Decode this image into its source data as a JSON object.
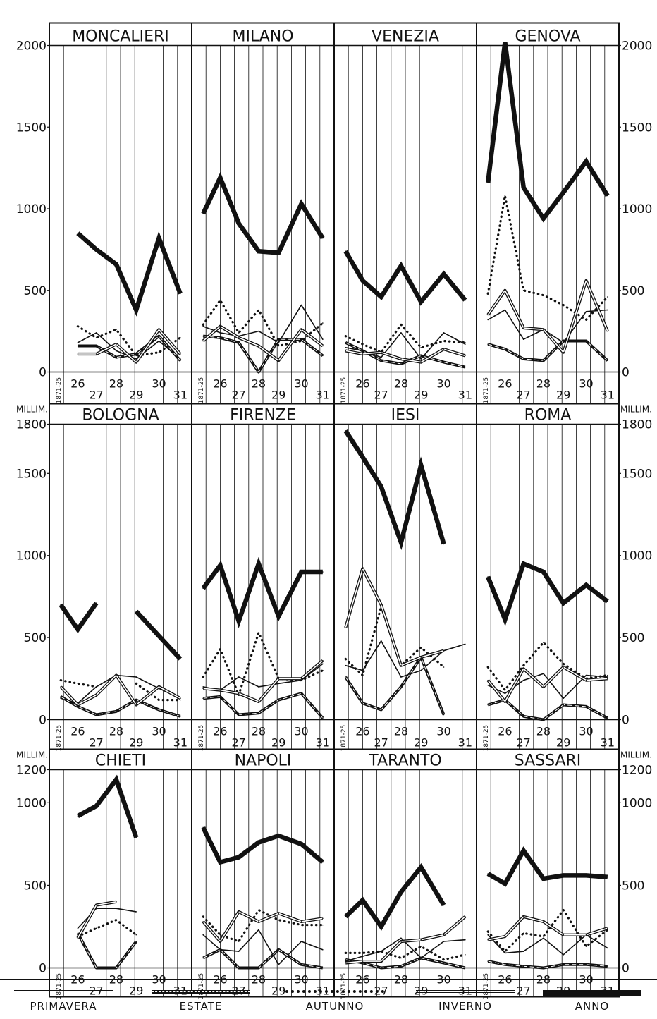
{
  "legend": [
    {
      "key": "primavera",
      "label": "PRIMAVERA"
    },
    {
      "key": "estate",
      "label": "ESTATE"
    },
    {
      "key": "autunno",
      "label": "AUTUNNO"
    },
    {
      "key": "inverno",
      "label": "INVERNO"
    },
    {
      "key": "anno",
      "label": "ANNO"
    }
  ],
  "rows": [
    {
      "ymax": 2000,
      "ticks": [
        0,
        500,
        1000,
        1500,
        2000
      ],
      "unit_label": ""
    },
    {
      "ymax": 1800,
      "ticks": [
        0,
        500,
        1000,
        1500,
        1800
      ],
      "unit_label": "MILLIM."
    },
    {
      "ymax": 1200,
      "ticks": [
        0,
        500,
        1000,
        1200
      ],
      "unit_label": "MILLIM."
    }
  ],
  "x_tick_labels": [
    "1871-25",
    "26",
    "27",
    "28",
    "29",
    "30",
    "31"
  ],
  "chart_data": [
    {
      "type": "line",
      "title": "MONCALIERI",
      "row": 0,
      "x": [
        "1871-25",
        "26",
        "27",
        "28",
        "29",
        "30",
        "31"
      ],
      "ylim": [
        0,
        2000
      ],
      "series": [
        {
          "name": "PRIMAVERA",
          "values": [
            null,
            180,
            240,
            130,
            80,
            190,
            80
          ]
        },
        {
          "name": "ESTATE",
          "values": [
            null,
            160,
            160,
            90,
            110,
            220,
            70
          ]
        },
        {
          "name": "AUTUNNO",
          "values": [
            null,
            280,
            210,
            260,
            100,
            120,
            210
          ]
        },
        {
          "name": "INVERNO",
          "values": [
            null,
            110,
            110,
            170,
            60,
            260,
            110
          ]
        },
        {
          "name": "ANNO",
          "values": [
            null,
            850,
            750,
            660,
            380,
            820,
            480
          ]
        }
      ]
    },
    {
      "type": "line",
      "title": "MILANO",
      "row": 0,
      "x": [
        "1871-25",
        "26",
        "27",
        "28",
        "29",
        "30",
        "31"
      ],
      "ylim": [
        0,
        2000
      ],
      "series": [
        {
          "name": "PRIMAVERA",
          "values": [
            280,
            240,
            220,
            250,
            180,
            410,
            200
          ]
        },
        {
          "name": "ESTATE",
          "values": [
            220,
            210,
            180,
            0,
            200,
            200,
            100
          ]
        },
        {
          "name": "AUTUNNO",
          "values": [
            290,
            440,
            240,
            380,
            160,
            190,
            300
          ]
        },
        {
          "name": "INVERNO",
          "values": [
            190,
            280,
            210,
            160,
            70,
            260,
            160
          ]
        },
        {
          "name": "ANNO",
          "values": [
            970,
            1190,
            910,
            740,
            730,
            1030,
            820
          ]
        }
      ]
    },
    {
      "type": "line",
      "title": "VENEZIA",
      "row": 0,
      "x": [
        "1871-25",
        "26",
        "27",
        "28",
        "29",
        "30",
        "31"
      ],
      "ylim": [
        0,
        2000
      ],
      "series": [
        {
          "name": "PRIMAVERA",
          "values": [
            150,
            130,
            90,
            240,
            80,
            240,
            170
          ]
        },
        {
          "name": "ESTATE",
          "values": [
            180,
            130,
            70,
            50,
            100,
            60,
            30
          ]
        },
        {
          "name": "AUTUNNO",
          "values": [
            220,
            170,
            120,
            290,
            150,
            190,
            180
          ]
        },
        {
          "name": "INVERNO",
          "values": [
            130,
            110,
            120,
            80,
            60,
            140,
            100
          ]
        },
        {
          "name": "ANNO",
          "values": [
            740,
            560,
            460,
            650,
            430,
            600,
            440
          ]
        }
      ]
    },
    {
      "type": "line",
      "title": "GENOVA",
      "row": 0,
      "x": [
        "1871-25",
        "26",
        "27",
        "28",
        "29",
        "30",
        "31"
      ],
      "ylim": [
        0,
        2000
      ],
      "series": [
        {
          "name": "PRIMAVERA",
          "values": [
            320,
            380,
            200,
            260,
            180,
            370,
            380
          ]
        },
        {
          "name": "ESTATE",
          "values": [
            170,
            140,
            80,
            70,
            190,
            190,
            70
          ]
        },
        {
          "name": "AUTUNNO",
          "values": [
            480,
            1080,
            500,
            470,
            410,
            320,
            460
          ]
        },
        {
          "name": "INVERNO",
          "values": [
            350,
            500,
            270,
            260,
            120,
            560,
            250
          ]
        },
        {
          "name": "ANNO",
          "values": [
            1160,
            2020,
            1130,
            940,
            1100,
            1290,
            1080
          ]
        }
      ]
    },
    {
      "type": "line",
      "title": "BOLOGNA",
      "row": 1,
      "x": [
        "1871-25",
        "26",
        "27",
        "28",
        "29",
        "30",
        "31"
      ],
      "ylim": [
        0,
        1800
      ],
      "series": [
        {
          "name": "PRIMAVERA",
          "values": [
            130,
            100,
            200,
            270,
            260,
            190,
            130
          ]
        },
        {
          "name": "ESTATE",
          "values": [
            140,
            80,
            30,
            50,
            120,
            60,
            20
          ]
        },
        {
          "name": "AUTUNNO",
          "values": [
            240,
            220,
            200,
            null,
            220,
            120,
            120
          ]
        },
        {
          "name": "INVERNO",
          "values": [
            200,
            90,
            150,
            270,
            90,
            200,
            130
          ]
        },
        {
          "name": "ANNO",
          "values": [
            700,
            550,
            710,
            null,
            660,
            510,
            370
          ]
        }
      ]
    },
    {
      "type": "line",
      "title": "FIRENZE",
      "row": 1,
      "x": [
        "1871-25",
        "26",
        "27",
        "28",
        "29",
        "30",
        "31"
      ],
      "ylim": [
        0,
        1800
      ],
      "series": [
        {
          "name": "PRIMAVERA",
          "values": [
            200,
            180,
            260,
            200,
            220,
            240,
            340
          ]
        },
        {
          "name": "ESTATE",
          "values": [
            130,
            140,
            30,
            40,
            120,
            160,
            10
          ]
        },
        {
          "name": "AUTUNNO",
          "values": [
            260,
            430,
            150,
            530,
            250,
            240,
            300
          ]
        },
        {
          "name": "INVERNO",
          "values": [
            190,
            180,
            160,
            110,
            250,
            250,
            360
          ]
        },
        {
          "name": "ANNO",
          "values": [
            800,
            940,
            600,
            950,
            630,
            900,
            900
          ]
        }
      ]
    },
    {
      "type": "line",
      "title": "IESI",
      "row": 1,
      "x": [
        "1871-25",
        "26",
        "27",
        "28",
        "29",
        "30",
        "31"
      ],
      "ylim": [
        0,
        1800
      ],
      "series": [
        {
          "name": "PRIMAVERA",
          "values": [
            330,
            300,
            480,
            260,
            300,
            420,
            460
          ]
        },
        {
          "name": "ESTATE",
          "values": [
            260,
            100,
            60,
            200,
            380,
            30,
            null
          ]
        },
        {
          "name": "AUTUNNO",
          "values": [
            370,
            270,
            690,
            330,
            440,
            320,
            null
          ]
        },
        {
          "name": "INVERNO",
          "values": [
            560,
            920,
            700,
            330,
            380,
            420,
            null
          ]
        },
        {
          "name": "ANNO",
          "values": [
            1760,
            1600,
            1420,
            1080,
            1550,
            1070,
            null
          ]
        }
      ]
    },
    {
      "type": "line",
      "title": "ROMA",
      "row": 1,
      "x": [
        "1871-25",
        "26",
        "27",
        "28",
        "29",
        "30",
        "31"
      ],
      "ylim": [
        0,
        1800
      ],
      "series": [
        {
          "name": "PRIMAVERA",
          "values": [
            210,
            160,
            240,
            280,
            130,
            270,
            260
          ]
        },
        {
          "name": "ESTATE",
          "values": [
            90,
            120,
            20,
            0,
            90,
            80,
            10
          ]
        },
        {
          "name": "AUTUNNO",
          "values": [
            320,
            180,
            330,
            470,
            340,
            250,
            270
          ]
        },
        {
          "name": "INVERNO",
          "values": [
            240,
            110,
            310,
            200,
            320,
            240,
            250
          ]
        },
        {
          "name": "ANNO",
          "values": [
            870,
            610,
            950,
            900,
            710,
            820,
            720
          ]
        }
      ]
    },
    {
      "type": "line",
      "title": "CHIETI",
      "row": 2,
      "x": [
        "1871-25",
        "26",
        "27",
        "28",
        "29",
        "30",
        "31"
      ],
      "ylim": [
        0,
        1200
      ],
      "series": [
        {
          "name": "PRIMAVERA",
          "values": [
            null,
            240,
            360,
            360,
            340,
            null,
            null
          ]
        },
        {
          "name": "ESTATE",
          "values": [
            null,
            210,
            0,
            0,
            160,
            null,
            null
          ]
        },
        {
          "name": "AUTUNNO",
          "values": [
            null,
            190,
            240,
            290,
            200,
            null,
            null
          ]
        },
        {
          "name": "INVERNO",
          "values": [
            null,
            180,
            380,
            400,
            null,
            null,
            null
          ]
        },
        {
          "name": "ANNO",
          "values": [
            null,
            920,
            980,
            1140,
            790,
            null,
            null
          ]
        }
      ]
    },
    {
      "type": "line",
      "title": "NAPOLI",
      "row": 2,
      "x": [
        "1871-25",
        "26",
        "27",
        "28",
        "29",
        "30",
        "31"
      ],
      "ylim": [
        0,
        1200
      ],
      "series": [
        {
          "name": "PRIMAVERA",
          "values": [
            200,
            110,
            100,
            230,
            20,
            160,
            110
          ]
        },
        {
          "name": "ESTATE",
          "values": [
            60,
            110,
            0,
            0,
            110,
            20,
            0
          ]
        },
        {
          "name": "AUTUNNO",
          "values": [
            310,
            200,
            160,
            350,
            290,
            260,
            260
          ]
        },
        {
          "name": "INVERNO",
          "values": [
            280,
            160,
            340,
            280,
            330,
            280,
            300
          ]
        },
        {
          "name": "ANNO",
          "values": [
            850,
            640,
            670,
            760,
            800,
            750,
            640
          ]
        }
      ]
    },
    {
      "type": "line",
      "title": "TARANTO",
      "row": 2,
      "x": [
        "1871-25",
        "26",
        "27",
        "28",
        "29",
        "30",
        "31"
      ],
      "ylim": [
        0,
        1200
      ],
      "series": [
        {
          "name": "PRIMAVERA",
          "values": [
            40,
            70,
            100,
            180,
            60,
            160,
            170
          ]
        },
        {
          "name": "ESTATE",
          "values": [
            50,
            30,
            0,
            10,
            60,
            30,
            0
          ]
        },
        {
          "name": "AUTUNNO",
          "values": [
            90,
            90,
            100,
            60,
            130,
            50,
            80
          ]
        },
        {
          "name": "INVERNO",
          "values": [
            30,
            40,
            40,
            160,
            170,
            200,
            310
          ]
        },
        {
          "name": "ANNO",
          "values": [
            310,
            410,
            250,
            460,
            610,
            380,
            null
          ]
        }
      ]
    },
    {
      "type": "line",
      "title": "SASSARI",
      "row": 2,
      "x": [
        "1871-25",
        "26",
        "27",
        "28",
        "29",
        "30",
        "31"
      ],
      "ylim": [
        0,
        1200
      ],
      "series": [
        {
          "name": "PRIMAVERA",
          "values": [
            200,
            90,
            100,
            180,
            80,
            200,
            120
          ]
        },
        {
          "name": "ESTATE",
          "values": [
            40,
            20,
            10,
            0,
            20,
            20,
            10
          ]
        },
        {
          "name": "AUTUNNO",
          "values": [
            220,
            100,
            210,
            190,
            350,
            130,
            230
          ]
        },
        {
          "name": "INVERNO",
          "values": [
            170,
            190,
            310,
            280,
            200,
            200,
            240
          ]
        },
        {
          "name": "ANNO",
          "values": [
            570,
            510,
            710,
            540,
            560,
            560,
            550
          ]
        }
      ]
    }
  ]
}
